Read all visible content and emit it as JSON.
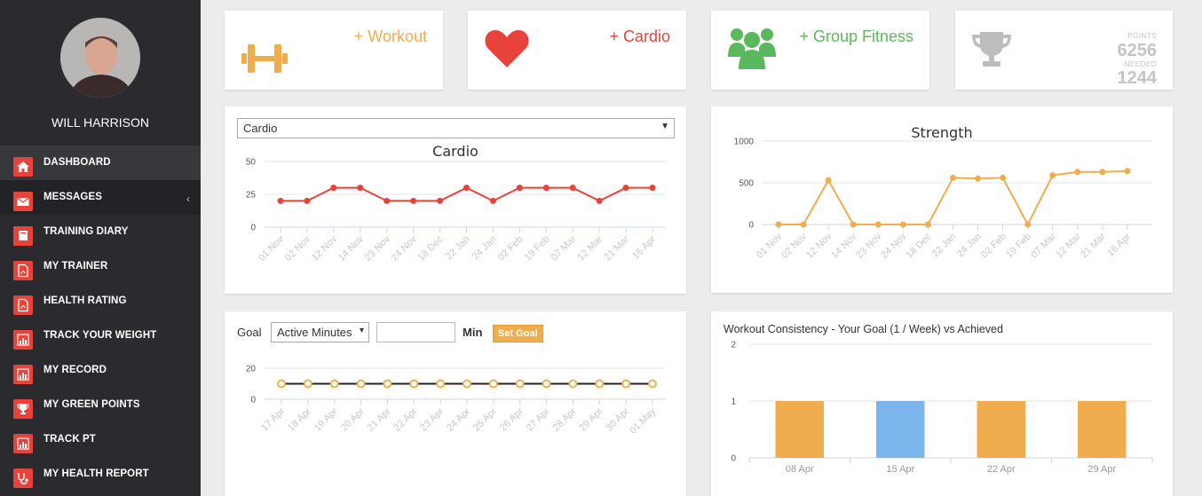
{
  "user": {
    "name": "WILL HARRISON"
  },
  "nav": {
    "items": [
      {
        "label": "DASHBOARD",
        "icon": "home-icon"
      },
      {
        "label": "MESSAGES",
        "icon": "envelope-icon"
      },
      {
        "label": "TRAINING DIARY",
        "icon": "book-icon"
      },
      {
        "label": "MY TRAINER",
        "icon": "pdf-icon"
      },
      {
        "label": "HEALTH RATING",
        "icon": "pdf-icon"
      },
      {
        "label": "TRACK YOUR WEIGHT",
        "icon": "bar-chart-icon"
      },
      {
        "label": "MY RECORD",
        "icon": "bar-chart-icon"
      },
      {
        "label": "MY GREEN POINTS",
        "icon": "trophy-icon"
      },
      {
        "label": "TRACK PT",
        "icon": "bar-chart-icon"
      },
      {
        "label": "MY HEALTH REPORT",
        "icon": "stethoscope-icon"
      }
    ],
    "expand_glyph": "‹"
  },
  "tiles": {
    "workout": {
      "label": "+ Workout",
      "color": "#f0ad4e"
    },
    "cardio": {
      "label": "+ Cardio",
      "color": "#e8433a"
    },
    "group": {
      "label": "+ Group Fitness",
      "color": "#5cb85c"
    },
    "points": {
      "points_label": "POINTS",
      "points_value": "6256",
      "needed_label": "NEEDED",
      "needed_value": "1244"
    }
  },
  "cardio_panel": {
    "select_value": "Cardio",
    "caret": "▼"
  },
  "goal_panel": {
    "goal_label": "Goal",
    "select_value": "Active Minutes",
    "caret": "▾",
    "input_value": "",
    "unit_label": "Min",
    "button_label": "Set Goal"
  },
  "chart_data": [
    {
      "type": "line",
      "title": "Cardio",
      "categories": [
        "01 Nov",
        "02 Nov",
        "12 Nov",
        "14 Nov",
        "23 Nov",
        "24 Nov",
        "18 Dec",
        "22 Jan",
        "24 Jan",
        "02 Feb",
        "19 Feb",
        "07 Mar",
        "12 Mar",
        "21 Mar",
        "16 Apr"
      ],
      "values": [
        20,
        20,
        30,
        30,
        20,
        20,
        20,
        30,
        20,
        30,
        30,
        30,
        20,
        30,
        30
      ],
      "yticks": [
        "0",
        "25",
        "50"
      ],
      "ylim": [
        0,
        50
      ],
      "color": "#e8433a"
    },
    {
      "type": "line",
      "title": "Strength",
      "categories": [
        "01 Nov",
        "02 Nov",
        "12 Nov",
        "14 Nov",
        "23 Nov",
        "24 Nov",
        "18 Dec",
        "22 Jan",
        "24 Jan",
        "02 Feb",
        "19 Feb",
        "07 Mar",
        "12 Mar",
        "21 Mar",
        "16 Apr"
      ],
      "values": [
        0,
        0,
        530,
        0,
        0,
        0,
        0,
        560,
        550,
        560,
        0,
        590,
        630,
        630,
        640
      ],
      "yticks": [
        "0",
        "500",
        "1000"
      ],
      "ylim": [
        0,
        1000
      ],
      "color": "#f0ad4e"
    },
    {
      "type": "line",
      "title": "",
      "categories": [
        "17 Apr",
        "18 Apr",
        "19 Apr",
        "20 Apr",
        "21 Apr",
        "22 Apr",
        "23 Apr",
        "24 Apr",
        "25 Apr",
        "26 Apr",
        "27 Apr",
        "28 Apr",
        "29 Apr",
        "30 Apr",
        "01 May"
      ],
      "values": [
        10,
        10,
        10,
        10,
        10,
        10,
        10,
        10,
        10,
        10,
        10,
        10,
        10,
        10,
        10
      ],
      "yticks": [
        "0",
        "20"
      ],
      "ylim": [
        0,
        20
      ],
      "color": "#f0ad4e"
    },
    {
      "type": "bar",
      "title": "Workout Consistency - Your Goal (1 / Week) vs Achieved",
      "categories": [
        "08 Apr",
        "15 Apr",
        "22 Apr",
        "29 Apr"
      ],
      "values": [
        1,
        1,
        1,
        1
      ],
      "colors": [
        "#f0ad4e",
        "#7cb5ec",
        "#f0ad4e",
        "#f0ad4e"
      ],
      "yticks": [
        "0",
        "1",
        "2"
      ],
      "ylim": [
        0,
        2
      ]
    }
  ]
}
